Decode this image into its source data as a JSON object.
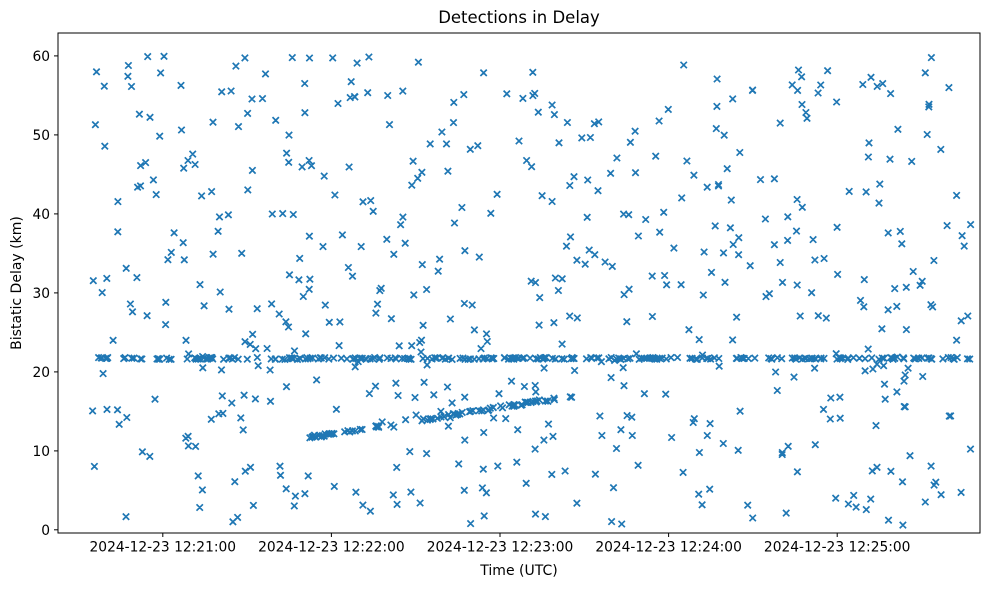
{
  "figure": {
    "title": "Detections in Delay",
    "xlabel": "Time (UTC)",
    "ylabel": "Bistatic Delay (km)"
  },
  "chart_data": {
    "type": "scatter",
    "title": "Detections in Delay",
    "xlabel": "Time (UTC)",
    "ylabel": "Bistatic Delay (km)",
    "marker": "x",
    "marker_color": "#1f77b4",
    "background_color": "#ffffff",
    "grid": false,
    "legend": "none",
    "time_origin_utc": "2024-12-23 12:20:00",
    "axes": {
      "x_range_s": [
        22.7,
        350.8
      ],
      "ylim": [
        -0.4,
        62.9
      ],
      "x_tick_seconds": [
        60,
        120,
        180,
        240,
        300
      ],
      "x_tick_labels": [
        "2024-12-23 12:21:00",
        "2024-12-23 12:22:00",
        "2024-12-23 12:23:00",
        "2024-12-23 12:24:00",
        "2024-12-23 12:25:00"
      ],
      "y_ticks": [
        0,
        10,
        20,
        30,
        40,
        50,
        60
      ]
    },
    "series": [
      {
        "name": "background-detections",
        "kind": "uniform-random",
        "n_points": 560,
        "time_range_s": [
          35,
          349
        ],
        "delay_range_km": [
          0.6,
          60.2
        ],
        "seed": 20241223
      },
      {
        "name": "constant-delay-clutter-line",
        "kind": "horizontal-band",
        "n_points": 260,
        "time_range_s": [
          35,
          349
        ],
        "delay_km": 21.7,
        "delay_jitter_km": 0.12,
        "seed": 77
      },
      {
        "name": "ascending-target-track",
        "kind": "linear-track",
        "n_points": 100,
        "time_range_s": [
          112,
          207
        ],
        "delay_start_km": 11.7,
        "delay_end_km": 17.0,
        "delay_jitter_km": 0.18,
        "gap_time_range_s": [
          137,
          152
        ],
        "gap_keep_fraction": 0.18,
        "gap_jitter_multiplier": 2.5,
        "seed": 99
      }
    ]
  }
}
